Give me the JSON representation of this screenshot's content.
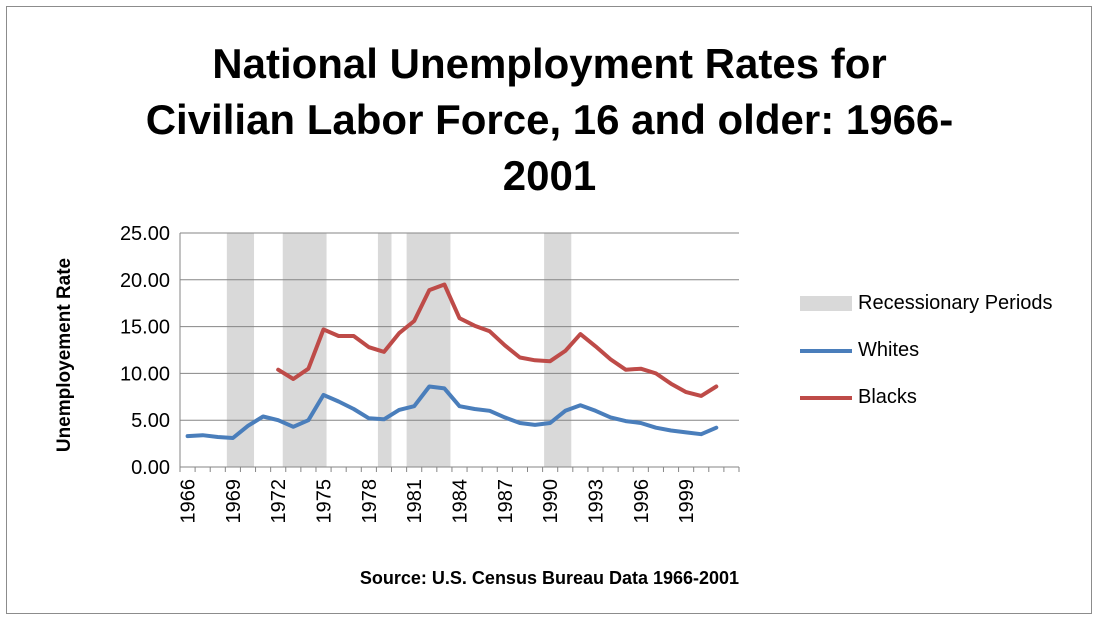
{
  "colors": {
    "recession": "#d9d9d9",
    "whites": "#4a7ebb",
    "blacks": "#be4b48",
    "gridline": "#868686",
    "axis": "#868686"
  },
  "chart_data": {
    "type": "line",
    "title_lines": [
      "National Unemployment Rates for",
      "Civilian Labor Force, 16 and older: 1966-",
      "2001"
    ],
    "ylabel": "Unemployement Rate",
    "xlabel": "Source: U.S. Census Bureau Data 1966-2001",
    "ylim": [
      0,
      25
    ],
    "yticks": [
      "0.00",
      "5.00",
      "10.00",
      "15.00",
      "20.00",
      "25.00"
    ],
    "xlim": [
      1966,
      2001
    ],
    "xticks": [
      "1966",
      "1969",
      "1972",
      "1975",
      "1978",
      "1981",
      "1984",
      "1987",
      "1990",
      "1993",
      "1996",
      "1999"
    ],
    "grid": true,
    "legend_position": "right",
    "recession_label": "Recessionary Periods",
    "recessions": [
      [
        1968.6,
        1970.4
      ],
      [
        1972.3,
        1975.2
      ],
      [
        1978.6,
        1979.5
      ],
      [
        1980.5,
        1983.4
      ],
      [
        1989.6,
        1991.4
      ]
    ],
    "series": [
      {
        "name": "Whites",
        "x": [
          1966,
          1967,
          1968,
          1969,
          1970,
          1971,
          1972,
          1973,
          1974,
          1975,
          1976,
          1977,
          1978,
          1979,
          1980,
          1981,
          1982,
          1983,
          1984,
          1985,
          1986,
          1987,
          1988,
          1989,
          1990,
          1991,
          1992,
          1993,
          1994,
          1995,
          1996,
          1997,
          1998,
          1999,
          2000,
          2001
        ],
        "values": [
          3.3,
          3.4,
          3.2,
          3.1,
          4.4,
          5.4,
          5.0,
          4.3,
          5.0,
          7.7,
          7.0,
          6.2,
          5.2,
          5.1,
          6.1,
          6.5,
          8.6,
          8.4,
          6.5,
          6.2,
          6.0,
          5.3,
          4.7,
          4.5,
          4.7,
          6.0,
          6.6,
          6.0,
          5.3,
          4.9,
          4.7,
          4.2,
          3.9,
          3.7,
          3.5,
          4.2
        ]
      },
      {
        "name": "Blacks",
        "x": [
          1972,
          1973,
          1974,
          1975,
          1976,
          1977,
          1978,
          1979,
          1980,
          1981,
          1982,
          1983,
          1984,
          1985,
          1986,
          1987,
          1988,
          1989,
          1990,
          1991,
          1992,
          1993,
          1994,
          1995,
          1996,
          1997,
          1998,
          1999,
          2000,
          2001
        ],
        "values": [
          10.4,
          9.4,
          10.5,
          14.7,
          14.0,
          14.0,
          12.8,
          12.3,
          14.3,
          15.6,
          18.9,
          19.5,
          15.9,
          15.1,
          14.5,
          13.0,
          11.7,
          11.4,
          11.3,
          12.4,
          14.2,
          12.9,
          11.5,
          10.4,
          10.5,
          10.0,
          8.9,
          8.0,
          7.6,
          8.6
        ]
      }
    ]
  }
}
